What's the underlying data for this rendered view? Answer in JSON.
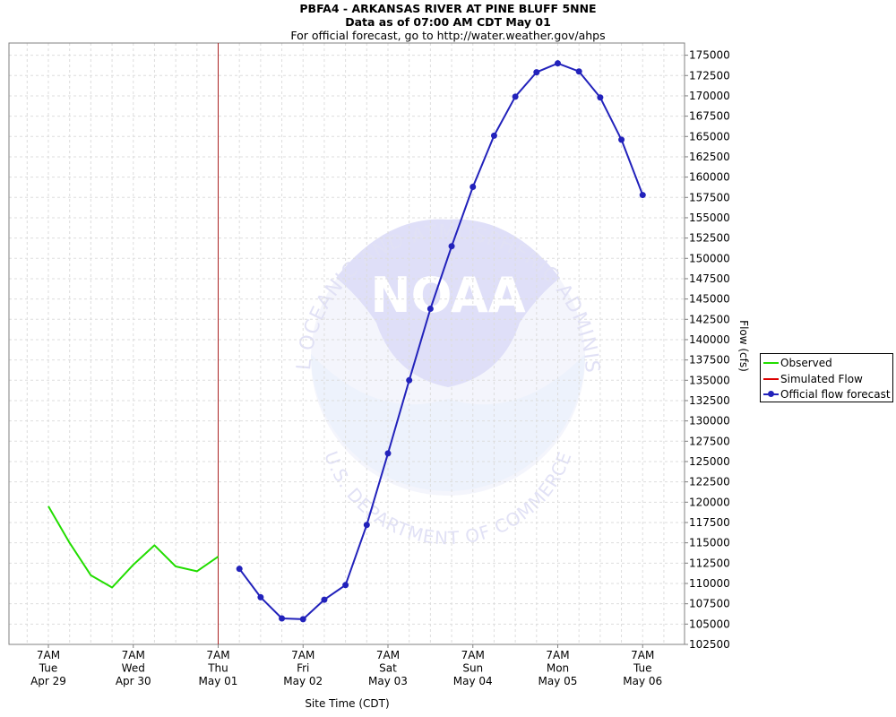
{
  "chart_data": {
    "type": "line",
    "title": "PBFA4 - ARKANSAS RIVER AT PINE BLUFF 5NNE",
    "subtitle_1": "Data as of 07:00 AM CDT May 01",
    "subtitle_2": "For official forecast, go to http://water.weather.gov/ahps",
    "xlabel": "Site Time (CDT)",
    "ylabel": "Flow (cfs)",
    "watermark": "NOAA",
    "ylim": [
      102500,
      176500
    ],
    "y_ticks": [
      "102500",
      "105000",
      "107500",
      "110000",
      "112500",
      "115000",
      "117500",
      "120000",
      "122500",
      "125000",
      "127500",
      "130000",
      "132500",
      "135000",
      "137500",
      "140000",
      "142500",
      "145000",
      "147500",
      "150000",
      "152500",
      "155000",
      "157500",
      "160000",
      "162500",
      "165000",
      "167500",
      "170000",
      "172500",
      "175000"
    ],
    "x_ticks": [
      {
        "time": "7AM",
        "day": "Tue",
        "date": "Apr 29"
      },
      {
        "time": "7AM",
        "day": "Wed",
        "date": "Apr 30"
      },
      {
        "time": "7AM",
        "day": "Thu",
        "date": "May 01"
      },
      {
        "time": "7AM",
        "day": "Fri",
        "date": "May 02"
      },
      {
        "time": "7AM",
        "day": "Sat",
        "date": "May 03"
      },
      {
        "time": "7AM",
        "day": "Sun",
        "date": "May 04"
      },
      {
        "time": "7AM",
        "day": "Mon",
        "date": "May 05"
      },
      {
        "time": "7AM",
        "day": "Tue",
        "date": "May 06"
      }
    ],
    "now_line_date": "May 01",
    "grid": true,
    "legend_position": "right",
    "series": [
      {
        "name": "Observed",
        "color": "#22dd00",
        "markers": false,
        "points": [
          [
            "Apr 29 07:00",
            119500
          ],
          [
            "Apr 29 13:00",
            115000
          ],
          [
            "Apr 29 19:00",
            111000
          ],
          [
            "Apr 30 01:00",
            109500
          ],
          [
            "Apr 30 07:00",
            112300
          ],
          [
            "Apr 30 13:00",
            114700
          ],
          [
            "Apr 30 19:00",
            112100
          ],
          [
            "May 01 01:00",
            111500
          ],
          [
            "May 01 07:00",
            113300
          ]
        ]
      },
      {
        "name": "Simulated Flow",
        "color": "#dd0000",
        "markers": false,
        "points": []
      },
      {
        "name": "Official flow forecast",
        "color": "#2222bb",
        "markers": true,
        "points": [
          [
            "May 01 13:00",
            111800
          ],
          [
            "May 01 19:00",
            108300
          ],
          [
            "May 02 01:00",
            105700
          ],
          [
            "May 02 07:00",
            105600
          ],
          [
            "May 02 13:00",
            108000
          ],
          [
            "May 02 19:00",
            109800
          ],
          [
            "May 03 01:00",
            117200
          ],
          [
            "May 03 07:00",
            126000
          ],
          [
            "May 03 13:00",
            135000
          ],
          [
            "May 03 19:00",
            143800
          ],
          [
            "May 04 01:00",
            151500
          ],
          [
            "May 04 07:00",
            158800
          ],
          [
            "May 04 13:00",
            165100
          ],
          [
            "May 04 19:00",
            169900
          ],
          [
            "May 05 01:00",
            172900
          ],
          [
            "May 05 07:00",
            174000
          ],
          [
            "May 05 13:00",
            173000
          ],
          [
            "May 05 19:00",
            169800
          ],
          [
            "May 06 01:00",
            164600
          ],
          [
            "May 06 07:00",
            157800
          ]
        ]
      }
    ]
  }
}
